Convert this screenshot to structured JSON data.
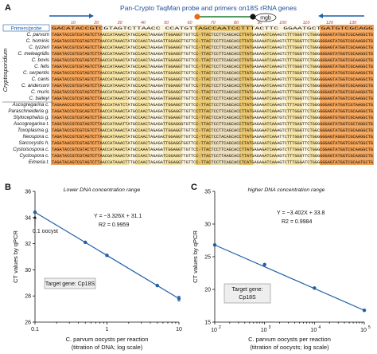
{
  "panels": {
    "a": {
      "letter": "A",
      "title": "Pan-Crypto TaqMan probe and primers on18S rRNA genes",
      "probe_label": "mgb",
      "positions": [
        "10",
        "20",
        "30",
        "40",
        "50",
        "60",
        "70",
        "80",
        "90",
        "100",
        "110",
        "120",
        "130"
      ],
      "header_row": "Primers/probe",
      "genus_label": "Cryptosporidium",
      "species": [
        "C. parvum",
        "C. hominis",
        "C. tyzzeri",
        "C. meleagridis",
        "C. bovis",
        "C. felis",
        "C. serpentis",
        "C. canis",
        "C. andersoni",
        "C. muris",
        "C. baileyi",
        "Ascogregarina c.",
        "Paraschneideria g.",
        "Stylocephalus g.",
        "Ascogregarina t.",
        "Toxoplasma g.",
        "Neospora c.",
        "Sarcocystis h.",
        "Cystoisospora c.",
        "Cyclospora c.",
        "Eimeria t."
      ],
      "sequence_colors": {
        "primer": "#f2a154",
        "probe": "#e8c46a",
        "light": "#f6e3a3",
        "gap": "#d9d9d9"
      }
    }
  },
  "chart_data": [
    {
      "type": "scatter",
      "panel": "B",
      "subtitle": "Lower DNA concentration range",
      "xlabel_line1": "C. parvum oocysts per reaction",
      "xlabel_line2": "(titration of DNA; log scale)",
      "ylabel": "CT values by qPCR",
      "x_scale": "log",
      "x": [
        0.1,
        0.5,
        1,
        5,
        10
      ],
      "y": [
        34.4,
        32.1,
        31.1,
        28.8,
        27.8
      ],
      "xticks": [
        "0.1",
        "1",
        "10"
      ],
      "yticks": [
        "26",
        "28",
        "30",
        "32",
        "34",
        "36"
      ],
      "ylim": [
        26,
        36
      ],
      "equation": "Y = −3.326X + 31.1",
      "r2": "R2 = 0.9959",
      "annotation": "0.1 oocyst",
      "target_gene": "Target gene: Cp18S"
    },
    {
      "type": "scatter",
      "panel": "C",
      "subtitle": "higher DNA concentration range",
      "xlabel_line1": "C. parvum oocysts per reaction",
      "xlabel_line2": "(titration of oocysts; log scale)",
      "ylabel": "CT values by qPCR",
      "x_scale": "log",
      "x": [
        100,
        1000,
        10000,
        100000
      ],
      "y": [
        26.8,
        23.8,
        20.2,
        16.8
      ],
      "xticks": [
        "10",
        "10",
        "10",
        "10"
      ],
      "xtick_exps": [
        "2",
        "3",
        "4",
        "5"
      ],
      "yticks": [
        "15",
        "20",
        "25",
        "30",
        "35"
      ],
      "ylim": [
        15,
        35
      ],
      "equation": "Y = −3.402X + 33.8",
      "r2": "R2 = 0.9984",
      "target_gene_line1": "Target gene:",
      "target_gene_line2": "Cp18S"
    }
  ]
}
